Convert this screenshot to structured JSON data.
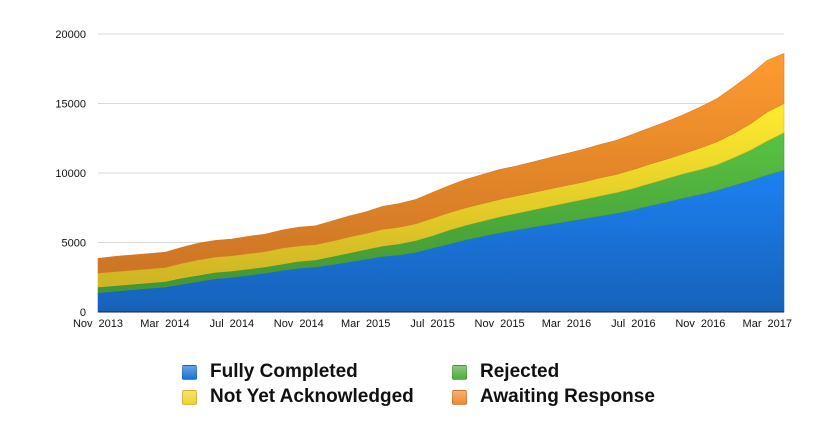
{
  "chart_data": {
    "type": "area",
    "stacked": true,
    "x": [
      "Nov 2013",
      "Dec 2013",
      "Jan 2014",
      "Feb 2014",
      "Mar 2014",
      "Apr 2014",
      "May 2014",
      "Jun 2014",
      "Jul 2014",
      "Aug 2014",
      "Sep 2014",
      "Oct 2014",
      "Nov 2014",
      "Dec 2014",
      "Jan 2015",
      "Feb 2015",
      "Mar 2015",
      "Apr 2015",
      "May 2015",
      "Jun 2015",
      "Jul 2015",
      "Aug 2015",
      "Sep 2015",
      "Oct 2015",
      "Nov 2015",
      "Dec 2015",
      "Jan 2016",
      "Feb 2016",
      "Mar 2016",
      "Apr 2016",
      "May 2016",
      "Jun 2016",
      "Jul 2016",
      "Aug 2016",
      "Sep 2016",
      "Oct 2016",
      "Nov 2016",
      "Dec 2016",
      "Jan 2017",
      "Feb 2017",
      "Mar 2017",
      "Apr 2017"
    ],
    "x_tick_labels": [
      {
        "month": "Nov",
        "year": "2013"
      },
      {
        "month": "Mar",
        "year": "2014"
      },
      {
        "month": "Jul",
        "year": "2014"
      },
      {
        "month": "Nov",
        "year": "2014"
      },
      {
        "month": "Mar",
        "year": "2015"
      },
      {
        "month": "Jul",
        "year": "2015"
      },
      {
        "month": "Nov",
        "year": "2015"
      },
      {
        "month": "Mar",
        "year": "2016"
      },
      {
        "month": "Jul",
        "year": "2016"
      },
      {
        "month": "Nov",
        "year": "2016"
      },
      {
        "month": "Mar",
        "year": "2017"
      }
    ],
    "y_ticks": [
      "0",
      "5000",
      "10000",
      "15000",
      "20000"
    ],
    "ylim": [
      0,
      20000
    ],
    "grid": true,
    "legend_position": "bottom",
    "title": "",
    "xlabel": "",
    "ylabel": "",
    "series": [
      {
        "name": "Fully Completed",
        "color": "#1a73d9",
        "values": [
          1400,
          1500,
          1600,
          1700,
          1800,
          2000,
          2200,
          2400,
          2500,
          2650,
          2800,
          3000,
          3150,
          3250,
          3400,
          3600,
          3800,
          4000,
          4100,
          4300,
          4600,
          4900,
          5200,
          5450,
          5700,
          5900,
          6100,
          6300,
          6500,
          6700,
          6900,
          7100,
          7350,
          7650,
          7900,
          8200,
          8450,
          8750,
          9100,
          9450,
          9850,
          10200
        ]
      },
      {
        "name": "Rejected",
        "color": "#4fae3c",
        "values": [
          400,
          400,
          400,
          400,
          400,
          450,
          450,
          450,
          450,
          450,
          450,
          450,
          500,
          500,
          600,
          650,
          700,
          750,
          800,
          850,
          900,
          1000,
          1050,
          1100,
          1150,
          1200,
          1250,
          1300,
          1350,
          1400,
          1450,
          1500,
          1550,
          1600,
          1700,
          1750,
          1800,
          1850,
          2000,
          2200,
          2450,
          2700
        ]
      },
      {
        "name": "Not Yet Acknowledged",
        "color": "#f2d22a",
        "values": [
          1000,
          1000,
          1000,
          1000,
          1000,
          1050,
          1100,
          1100,
          1100,
          1100,
          1100,
          1150,
          1100,
          1100,
          1100,
          1150,
          1150,
          1200,
          1200,
          1200,
          1250,
          1250,
          1250,
          1250,
          1250,
          1250,
          1250,
          1250,
          1250,
          1250,
          1300,
          1300,
          1350,
          1400,
          1400,
          1450,
          1550,
          1650,
          1750,
          1900,
          2100,
          2100
        ]
      },
      {
        "name": "Awaiting Response",
        "color": "#f08a2a",
        "values": [
          1050,
          1100,
          1100,
          1100,
          1100,
          1150,
          1200,
          1200,
          1200,
          1250,
          1250,
          1300,
          1350,
          1350,
          1450,
          1500,
          1550,
          1650,
          1700,
          1750,
          1850,
          1950,
          2050,
          2100,
          2150,
          2150,
          2200,
          2250,
          2300,
          2350,
          2400,
          2450,
          2550,
          2600,
          2700,
          2800,
          2950,
          3100,
          3350,
          3550,
          3700,
          3600
        ]
      }
    ]
  }
}
